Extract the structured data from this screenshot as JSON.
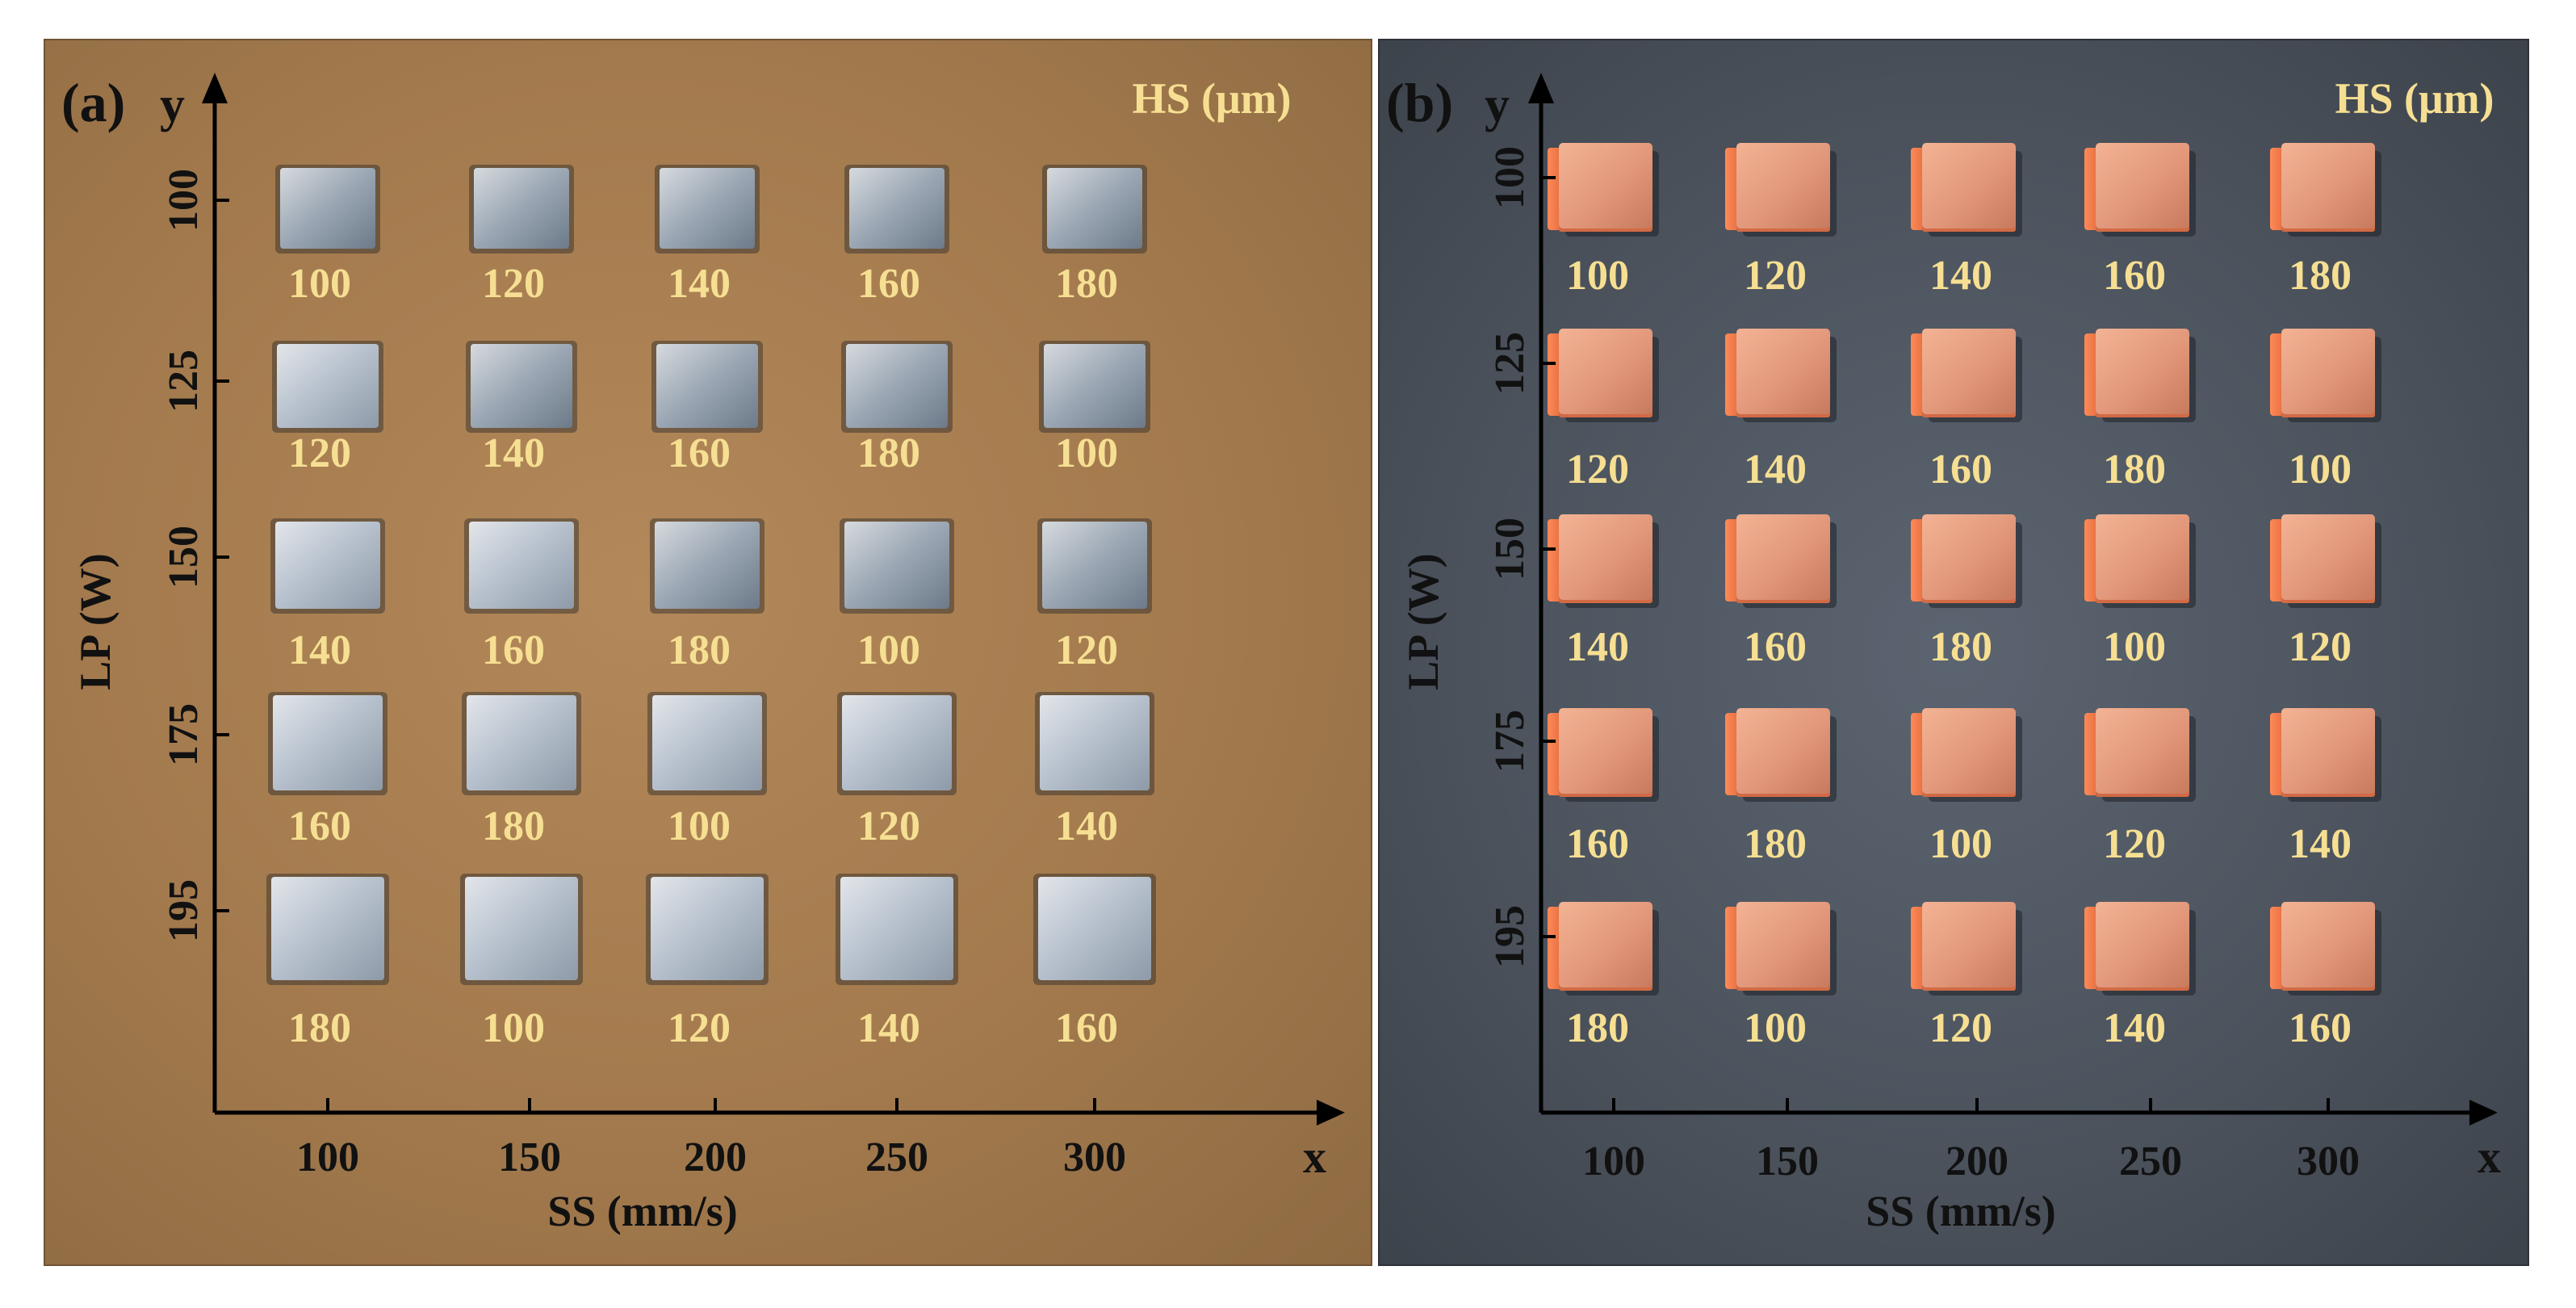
{
  "panels": [
    {
      "id": "a",
      "panel_label": "(a)",
      "y_axis_letter": "y",
      "x_axis_letter": "x",
      "y_axis_title": "LP (W)",
      "x_axis_title": "SS (mm/s)",
      "legend": "HS (μm)",
      "x_ticks": [
        "100",
        "150",
        "200",
        "250",
        "300"
      ],
      "y_ticks": [
        "100",
        "125",
        "150",
        "175",
        "195"
      ],
      "sample_style": "flat-metallic-squares",
      "colors": {
        "background": "#a37a4d",
        "label": "#f6df92",
        "sample": "#c9ccd0"
      },
      "hs_grid": [
        [
          "100",
          "120",
          "140",
          "160",
          "180"
        ],
        [
          "120",
          "140",
          "160",
          "180",
          "100"
        ],
        [
          "140",
          "160",
          "180",
          "100",
          "120"
        ],
        [
          "160",
          "180",
          "100",
          "120",
          "140"
        ],
        [
          "180",
          "100",
          "120",
          "140",
          "160"
        ]
      ]
    },
    {
      "id": "b",
      "panel_label": "(b)",
      "y_axis_letter": "y",
      "x_axis_letter": "x",
      "y_axis_title": "LP (W)",
      "x_axis_title": "SS (mm/s)",
      "legend": "HS (μm)",
      "x_ticks": [
        "100",
        "150",
        "200",
        "250",
        "300"
      ],
      "y_ticks": [
        "100",
        "125",
        "150",
        "175",
        "195"
      ],
      "sample_style": "copper-cubes",
      "colors": {
        "background": "#4b525c",
        "label": "#f6df92",
        "sample": "#e0916e"
      },
      "hs_grid": [
        [
          "100",
          "120",
          "140",
          "160",
          "180"
        ],
        [
          "120",
          "140",
          "160",
          "180",
          "100"
        ],
        [
          "140",
          "160",
          "180",
          "100",
          "120"
        ],
        [
          "160",
          "180",
          "100",
          "120",
          "140"
        ],
        [
          "180",
          "100",
          "120",
          "140",
          "160"
        ]
      ]
    }
  ]
}
